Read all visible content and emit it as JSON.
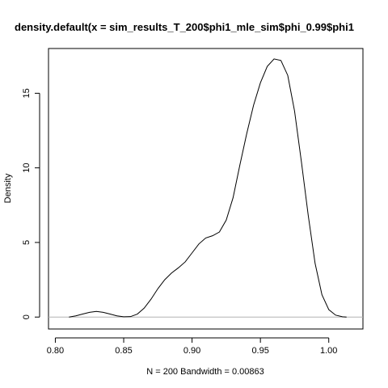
{
  "chart_data": {
    "type": "line",
    "title": "density.default(x = sim_results_T_200$phi1_mle_sim$phi_0.99$phi1",
    "xlabel": "N = 200   Bandwidth = 0.00863",
    "ylabel": "Density",
    "xlim": [
      0.795,
      1.025
    ],
    "ylim": [
      -0.8,
      18.0
    ],
    "x_ticks": [
      0.8,
      0.85,
      0.9,
      0.95,
      1.0
    ],
    "x_tick_labels": [
      "0.80",
      "0.85",
      "0.90",
      "0.95",
      "1.00"
    ],
    "y_ticks": [
      0,
      5,
      10,
      15
    ],
    "y_tick_labels": [
      "0",
      "5",
      "10",
      "15"
    ],
    "baseline": 0,
    "baseline_color": "#b3b3b3",
    "line_color": "#000000",
    "series": [
      {
        "x": [
          0.81,
          0.815,
          0.82,
          0.825,
          0.83,
          0.835,
          0.84,
          0.845,
          0.85,
          0.855,
          0.86,
          0.865,
          0.87,
          0.875,
          0.88,
          0.885,
          0.89,
          0.895,
          0.9,
          0.905,
          0.91,
          0.915,
          0.92,
          0.925,
          0.93,
          0.935,
          0.94,
          0.945,
          0.95,
          0.955,
          0.96,
          0.965,
          0.97,
          0.975,
          0.98,
          0.985,
          0.99,
          0.995,
          1.0,
          1.005,
          1.01,
          1.013
        ],
        "y": [
          0.0,
          0.08,
          0.2,
          0.32,
          0.38,
          0.32,
          0.2,
          0.08,
          0.02,
          0.03,
          0.2,
          0.6,
          1.2,
          1.9,
          2.5,
          2.95,
          3.3,
          3.7,
          4.3,
          4.9,
          5.3,
          5.45,
          5.7,
          6.5,
          8.0,
          10.2,
          12.3,
          14.2,
          15.7,
          16.8,
          17.3,
          17.2,
          16.2,
          13.8,
          10.4,
          6.8,
          3.6,
          1.5,
          0.5,
          0.13,
          0.02,
          0.0
        ]
      }
    ]
  }
}
